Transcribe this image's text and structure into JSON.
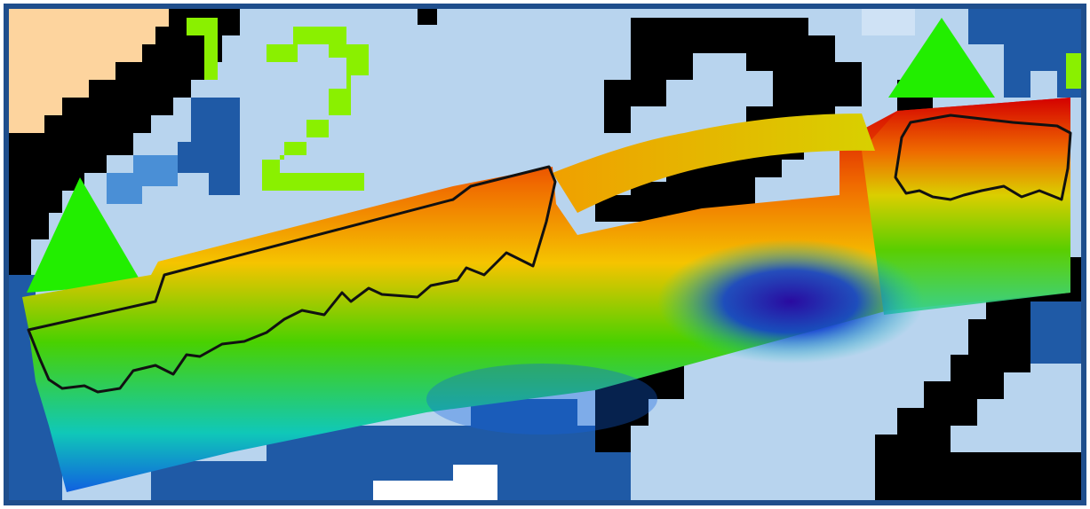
{
  "map": {
    "view": "bathymetry-survey-overlay-on-gridded-base-map",
    "colors": {
      "border": "#1f4e8c",
      "base_light_blue": "#b8d4ee",
      "base_dark_blue": "#1f5aa6",
      "base_black": "#000000",
      "base_peach": "#fdd49e",
      "base_white": "#ffffff",
      "base_green": "#22ee00",
      "outline": "#111111"
    },
    "depth_color_ramp": [
      "#d40000",
      "#f06a00",
      "#f5c400",
      "#49d100",
      "#10c8b8",
      "#1060e0",
      "#2a0aa0"
    ],
    "outlined_regions": 2
  }
}
